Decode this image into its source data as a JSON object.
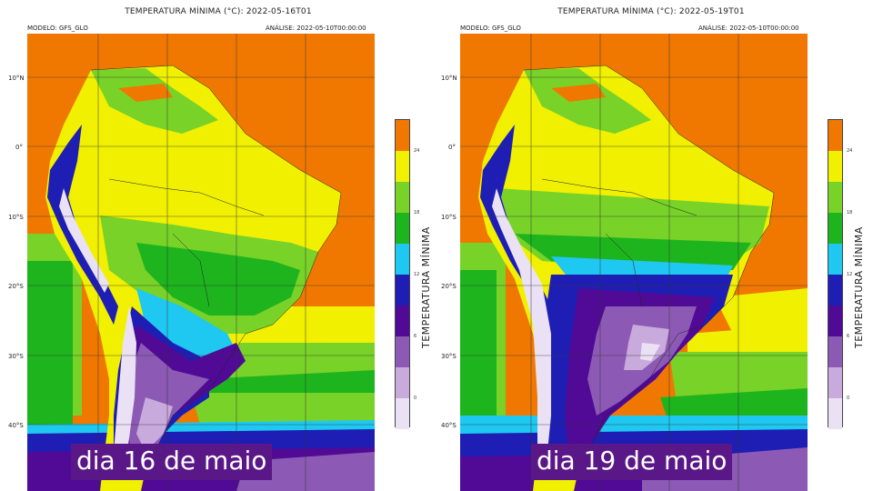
{
  "panels": [
    {
      "title": "TEMPERATURA MÍNIMA (°C): 2022-05-16T01",
      "model": "MODELO: GFS_GLO",
      "analysis": "ANÁLISE: 2022-05-10T00:00:00",
      "caption": "dia 16 de maio"
    },
    {
      "title": "TEMPERATURA MÍNIMA (°C): 2022-05-19T01",
      "model": "MODELO: GFS_GLO",
      "analysis": "ANÁLISE: 2022-05-10T00:00:00",
      "caption": "dia 19 de maio"
    }
  ],
  "latitude_labels": [
    "10°N",
    "0°",
    "10°S",
    "20°S",
    "30°S",
    "40°S"
  ],
  "colorbar": {
    "label": "TEMPERATURA MÍNIMA",
    "ticks": [
      "24",
      "18",
      "12",
      "6",
      "0"
    ],
    "colors": [
      "#f07800",
      "#f0f000",
      "#78d228",
      "#1eb41e",
      "#1ec8f0",
      "#1e1eb4",
      "#500a96",
      "#8c5ab4",
      "#c8aadc",
      "#ebe1f5"
    ]
  }
}
